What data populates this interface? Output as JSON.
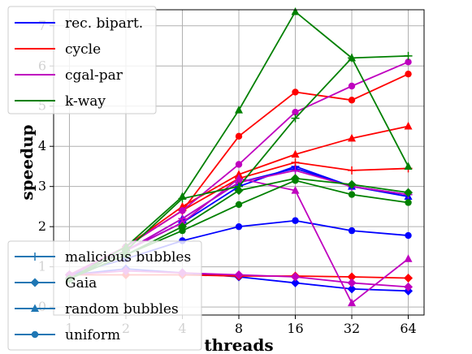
{
  "chart_data": {
    "type": "line",
    "title": "",
    "xlabel": "threads",
    "ylabel": "speedup",
    "x_scale": "log2",
    "x_ticks": [
      1,
      2,
      4,
      8,
      16,
      32,
      64
    ],
    "x_tick_labels": [
      "1",
      "2",
      "4",
      "8",
      "16",
      "32",
      "64"
    ],
    "y_ticks": [
      0,
      1,
      2,
      3,
      4,
      5,
      6,
      7
    ],
    "y_tick_labels": [
      "0",
      "1",
      "2",
      "3",
      "4",
      "5",
      "6",
      "7"
    ],
    "ylim": [
      -0.2,
      7.4
    ],
    "grid": true,
    "legend_algorithms": [
      {
        "name": "rec. bipart.",
        "color": "#0000ff"
      },
      {
        "name": "cycle",
        "color": "#ff0000"
      },
      {
        "name": "cgal-par",
        "color": "#bf00bf"
      },
      {
        "name": "k-way",
        "color": "#008000"
      }
    ],
    "legend_inputs": [
      {
        "name": "malicious bubbles",
        "marker": "plus"
      },
      {
        "name": "Gaia",
        "marker": "diamond"
      },
      {
        "name": "random bubbles",
        "marker": "triangle"
      },
      {
        "name": "uniform",
        "marker": "circle"
      }
    ],
    "legend_marker_color": "#1f77b4",
    "x": [
      1,
      2,
      4,
      8,
      16,
      32,
      64
    ],
    "series": [
      {
        "algorithm": "rec. bipart.",
        "input": "malicious bubbles",
        "color": "#0000ff",
        "marker": "plus",
        "values": [
          0.8,
          1.4,
          2.1,
          3.0,
          3.5,
          3.0,
          2.8
        ]
      },
      {
        "algorithm": "rec. bipart.",
        "input": "Gaia",
        "color": "#0000ff",
        "marker": "diamond",
        "values": [
          0.8,
          0.95,
          0.85,
          0.75,
          0.6,
          0.45,
          0.4
        ]
      },
      {
        "algorithm": "rec. bipart.",
        "input": "random bubbles",
        "color": "#0000ff",
        "marker": "triangle",
        "values": [
          0.8,
          1.4,
          2.2,
          3.1,
          3.45,
          3.0,
          2.75
        ]
      },
      {
        "algorithm": "rec. bipart.",
        "input": "uniform",
        "color": "#0000ff",
        "marker": "circle",
        "values": [
          0.8,
          1.2,
          1.65,
          2.0,
          2.15,
          1.9,
          1.78
        ]
      },
      {
        "algorithm": "cycle",
        "input": "malicious bubbles",
        "color": "#ff0000",
        "marker": "plus",
        "values": [
          0.8,
          1.5,
          2.4,
          3.2,
          3.6,
          3.4,
          3.45
        ]
      },
      {
        "algorithm": "cycle",
        "input": "Gaia",
        "color": "#ff0000",
        "marker": "diamond",
        "values": [
          0.8,
          0.8,
          0.8,
          0.77,
          0.77,
          0.75,
          0.72
        ]
      },
      {
        "algorithm": "cycle",
        "input": "random bubbles",
        "color": "#ff0000",
        "marker": "triangle",
        "values": [
          0.8,
          1.5,
          2.5,
          3.3,
          3.8,
          4.2,
          4.5
        ]
      },
      {
        "algorithm": "cycle",
        "input": "uniform",
        "color": "#ff0000",
        "marker": "circle",
        "values": [
          0.8,
          1.5,
          2.4,
          4.25,
          5.35,
          5.15,
          5.8
        ]
      },
      {
        "algorithm": "cgal-par",
        "input": "malicious bubbles",
        "color": "#bf00bf",
        "marker": "plus",
        "values": [
          0.8,
          1.4,
          2.2,
          3.1,
          3.4,
          3.0,
          2.8
        ]
      },
      {
        "algorithm": "cgal-par",
        "input": "Gaia",
        "color": "#bf00bf",
        "marker": "diamond",
        "values": [
          0.8,
          0.9,
          0.85,
          0.8,
          0.75,
          0.6,
          0.5
        ]
      },
      {
        "algorithm": "cgal-par",
        "input": "random bubbles",
        "color": "#bf00bf",
        "marker": "triangle",
        "values": [
          0.8,
          1.4,
          2.1,
          3.2,
          2.9,
          0.1,
          1.2
        ]
      },
      {
        "algorithm": "cgal-par",
        "input": "uniform",
        "color": "#bf00bf",
        "marker": "circle",
        "values": [
          0.8,
          1.5,
          2.4,
          3.55,
          4.85,
          5.5,
          6.1
        ]
      },
      {
        "algorithm": "k-way",
        "input": "malicious bubbles",
        "color": "#008000",
        "marker": "plus",
        "values": [
          0.7,
          1.4,
          2.7,
          3.0,
          4.7,
          6.2,
          6.25
        ]
      },
      {
        "algorithm": "k-way",
        "input": "Gaia",
        "color": "#008000",
        "marker": "diamond",
        "values": [
          0.7,
          1.3,
          2.0,
          2.9,
          3.2,
          3.05,
          2.85
        ]
      },
      {
        "algorithm": "k-way",
        "input": "random bubbles",
        "color": "#008000",
        "marker": "triangle",
        "values": [
          0.7,
          1.5,
          2.75,
          4.9,
          7.35,
          6.2,
          3.5
        ]
      },
      {
        "algorithm": "k-way",
        "input": "uniform",
        "color": "#008000",
        "marker": "circle",
        "values": [
          0.7,
          1.3,
          1.9,
          2.55,
          3.15,
          2.8,
          2.6
        ]
      }
    ]
  }
}
